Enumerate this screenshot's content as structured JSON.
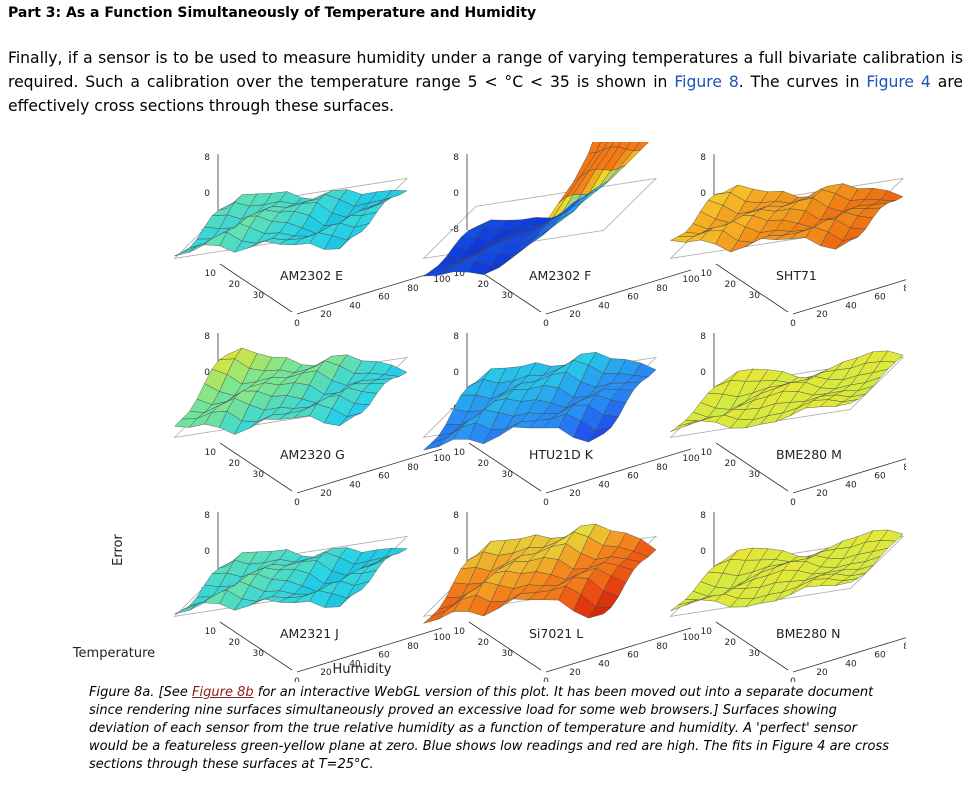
{
  "section": {
    "heading": "Part 3: As a Function Simultaneously of Temperature and Humidity"
  },
  "intro": {
    "part1": "Finally, if a sensor is to be used to measure humidity under a range of varying temperatures a full bivariate calibration is required. Such a calibration over the temperature range 5 < °C < 35 is shown in ",
    "link1": "Figure 8",
    "part2": ". The curves in ",
    "link2": "Figure 4",
    "part3": " are effectively cross sections through these surfaces."
  },
  "figure": {
    "axis_labels": {
      "z": "Error",
      "y": "Temperature",
      "x": "Humidity"
    },
    "z_ticks": [
      "8",
      "0",
      "-8"
    ],
    "temp_ticks": [
      "10",
      "20",
      "30"
    ],
    "hum_ticks": [
      "0",
      "20",
      "40",
      "60",
      "80",
      "100"
    ],
    "panels": [
      {
        "label": "AM2302 E",
        "palette": "cyan-green",
        "shape": "low-flat"
      },
      {
        "label": "AM2302 F",
        "palette": "blue-bowl",
        "shape": "bowl"
      },
      {
        "label": "SHT71",
        "palette": "red-yellow",
        "shape": "tilt"
      },
      {
        "label": "AM2320 G",
        "palette": "blue-yellow",
        "shape": "ridge"
      },
      {
        "label": "HTU21D K",
        "palette": "blue-cyan",
        "shape": "valley"
      },
      {
        "label": "BME280 M",
        "palette": "yellow-green",
        "shape": "wavy"
      },
      {
        "label": "AM2321 J",
        "palette": "cyan-green",
        "shape": "low-flat"
      },
      {
        "label": "Si7021 L",
        "palette": "red-orange",
        "shape": "dome"
      },
      {
        "label": "BME280 N",
        "palette": "yellow-green",
        "shape": "wavy"
      }
    ]
  },
  "caption": {
    "part1": "Figure 8a. [See ",
    "link": "Figure 8b",
    "part2": " for an interactive WebGL version of this plot. It has been moved out into a separate document since rendering nine surfaces simultaneously proved an excessive load for some web browsers.] Surfaces showing deviation of each sensor from the true relative humidity as a function of temperature and humidity. A 'perfect' sensor would be a featureless green-yellow plane at zero. Blue shows low readings and red are high. The fits in Figure 4 are cross sections through these surfaces at T=25°C."
  }
}
